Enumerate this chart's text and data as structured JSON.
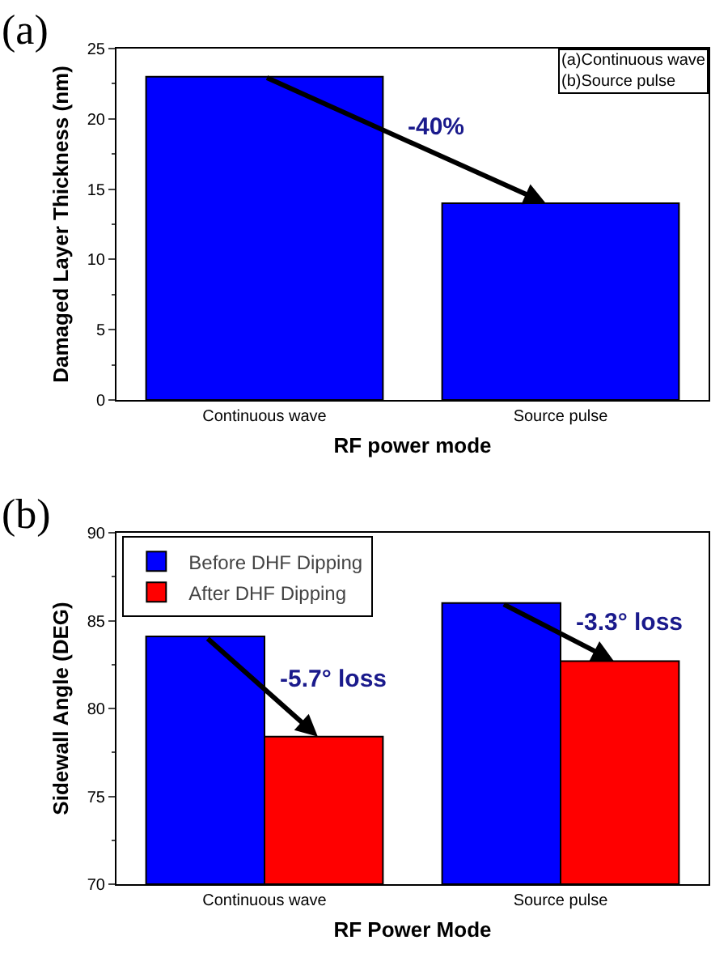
{
  "chart_data": [
    {
      "type": "bar",
      "xlabel": "RF power mode",
      "ylabel": "Damaged Layer Thickness (nm)",
      "categories": [
        "Continuous wave",
        "Source pulse"
      ],
      "series": [
        {
          "color": "#0000ff",
          "values": [
            23,
            14
          ]
        }
      ],
      "ylim": [
        0,
        25
      ],
      "yticks": [
        0,
        5,
        10,
        15,
        20,
        25
      ],
      "grid": false,
      "legend": false,
      "annotations": [
        "(a)",
        "-40%",
        "(a)Continuous wave",
        "(b)Source pulse"
      ]
    },
    {
      "type": "bar",
      "xlabel": "RF Power Mode",
      "ylabel": "Sidewall Angle (DEG)",
      "categories": [
        "Continuous wave",
        "Source pulse"
      ],
      "series": [
        {
          "name": "Before DHF Dipping",
          "color": "#0000ff",
          "values": [
            84.1,
            86.0
          ]
        },
        {
          "name": "After DHF Dipping",
          "color": "#ff0000",
          "values": [
            78.4,
            82.7
          ]
        }
      ],
      "ylim": [
        70,
        90
      ],
      "yticks": [
        70,
        75,
        80,
        85,
        90
      ],
      "grid": false,
      "legend": "top left",
      "annotations": [
        "(b)",
        {
          "text": "-5.7° loss",
          "x": "Continuous wave",
          "y": 81.7
        },
        {
          "text": "-3.3° loss",
          "x": "Source pulse",
          "y": 84.9
        }
      ]
    }
  ]
}
